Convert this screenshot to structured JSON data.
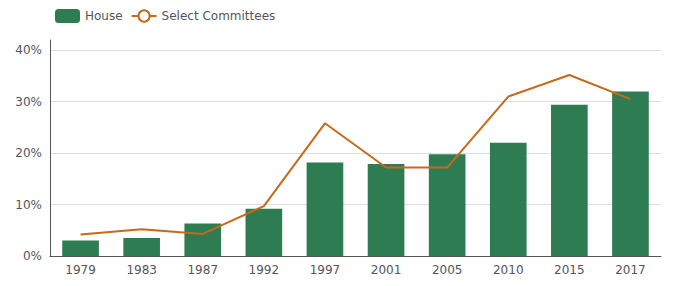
{
  "chart_data": {
    "type": "bar",
    "categories": [
      "1979",
      "1983",
      "1987",
      "1992",
      "1997",
      "2001",
      "2005",
      "2010",
      "2015",
      "2017"
    ],
    "series": [
      {
        "name": "House",
        "type": "bar",
        "color": "#2e7d52",
        "values": [
          0.03,
          0.035,
          0.063,
          0.092,
          0.182,
          0.179,
          0.198,
          0.22,
          0.294,
          0.32
        ]
      },
      {
        "name": "Select Committees",
        "type": "line",
        "color": "#c8691a",
        "values": [
          0.042,
          0.052,
          0.043,
          0.097,
          0.258,
          0.172,
          0.172,
          0.31,
          0.352,
          0.305
        ]
      }
    ],
    "ylim": [
      0,
      0.42
    ],
    "yticks": [
      {
        "value": 0.0,
        "label": "0%"
      },
      {
        "value": 0.1,
        "label": "10%"
      },
      {
        "value": 0.2,
        "label": "20%"
      },
      {
        "value": 0.3,
        "label": "30%"
      },
      {
        "value": 0.4,
        "label": "40%"
      }
    ],
    "grid": true,
    "legend": "upper left"
  }
}
